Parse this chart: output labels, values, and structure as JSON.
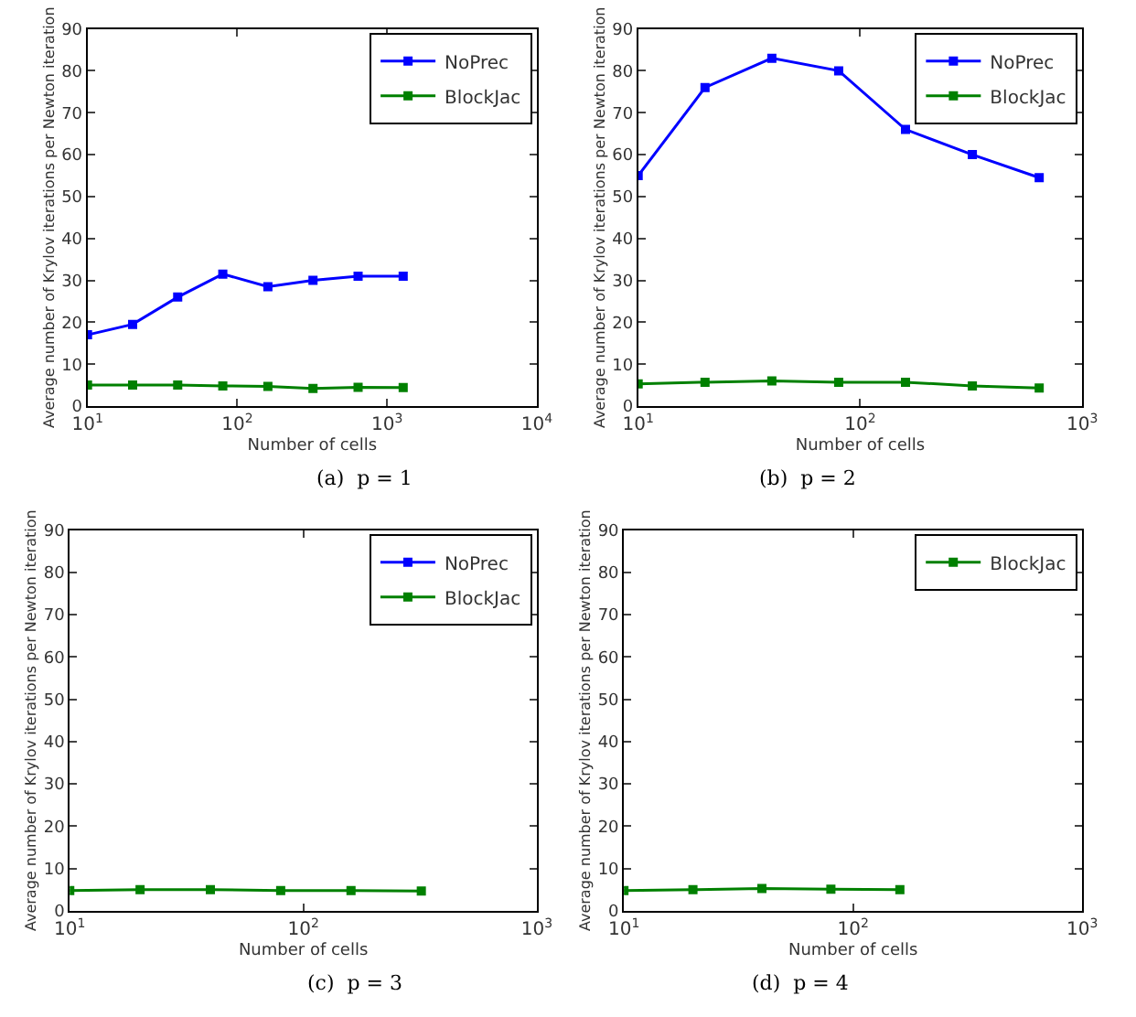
{
  "chart_data": [
    {
      "type": "line",
      "title": "(a)  p = 1",
      "xlabel": "Number of cells",
      "ylabel": "Average number of Krylov iterations per Newton iteration",
      "log": "x",
      "xlim": [
        10,
        10000
      ],
      "xticks": [
        {
          "value": 10,
          "label": "10$^{1}$"
        },
        {
          "value": 100,
          "label": "10$^{2}$"
        },
        {
          "value": 1000,
          "label": "10$^{3}$"
        },
        {
          "value": 10000,
          "label": "10$^{4}$"
        }
      ],
      "ylim": [
        0,
        90
      ],
      "yticks": [
        0,
        10,
        20,
        30,
        40,
        50,
        60,
        70,
        80,
        90
      ],
      "legend": "top right",
      "marker": "square",
      "x": [
        10,
        20,
        40,
        80,
        160,
        320,
        640,
        1280
      ],
      "series": [
        {
          "name": "NoPrec",
          "color": "#0000ff",
          "values": [
            17,
            19.5,
            26,
            31.5,
            28.5,
            30,
            31,
            31
          ]
        },
        {
          "name": "BlockJac",
          "color": "#008000",
          "values": [
            5,
            5,
            5,
            4.8,
            4.7,
            4.2,
            4.5,
            4.4
          ]
        }
      ]
    },
    {
      "type": "line",
      "title": "(b)  p = 2",
      "xlabel": "Number of cells",
      "ylabel": "Average number of Krylov iterations per Newton iteration",
      "log": "x",
      "xlim": [
        10,
        1000
      ],
      "xticks": [
        {
          "value": 10,
          "label": "10$^{1}$"
        },
        {
          "value": 100,
          "label": "10$^{2}$"
        },
        {
          "value": 1000,
          "label": "10$^{3}$"
        }
      ],
      "ylim": [
        0,
        90
      ],
      "yticks": [
        0,
        10,
        20,
        30,
        40,
        50,
        60,
        70,
        80,
        90
      ],
      "legend": "top right",
      "marker": "square",
      "x": [
        10,
        20,
        40,
        80,
        160,
        320,
        640
      ],
      "series": [
        {
          "name": "NoPrec",
          "color": "#0000ff",
          "values": [
            55,
            76,
            83,
            80,
            66,
            60,
            54.5
          ]
        },
        {
          "name": "BlockJac",
          "color": "#008000",
          "values": [
            5.3,
            5.7,
            6,
            5.7,
            5.7,
            4.8,
            4.3
          ]
        }
      ]
    },
    {
      "type": "line",
      "title": "(c)  p = 3",
      "xlabel": "Number of cells",
      "ylabel": "Average number of Krylov iterations per Newton iteration",
      "log": "x",
      "xlim": [
        10,
        1000
      ],
      "xticks": [
        {
          "value": 10,
          "label": "10$^{1}$"
        },
        {
          "value": 100,
          "label": "10$^{2}$"
        },
        {
          "value": 1000,
          "label": "10$^{3}$"
        }
      ],
      "ylim": [
        0,
        90
      ],
      "yticks": [
        0,
        10,
        20,
        30,
        40,
        50,
        60,
        70,
        80,
        90
      ],
      "legend": "top right",
      "marker": "square",
      "x": [
        10,
        20,
        40,
        80,
        160,
        320
      ],
      "series": [
        {
          "name": "NoPrec",
          "color": "#0000ff",
          "values": [
            null,
            null,
            null,
            null,
            null,
            null
          ]
        },
        {
          "name": "BlockJac",
          "color": "#008000",
          "values": [
            4.8,
            5,
            5,
            4.8,
            4.8,
            4.7
          ]
        }
      ]
    },
    {
      "type": "line",
      "title": "(d)  p = 4",
      "xlabel": "Number of cells",
      "ylabel": "Average number of Krylov iterations per Newton iteration",
      "log": "x",
      "xlim": [
        10,
        1000
      ],
      "xticks": [
        {
          "value": 10,
          "label": "10$^{1}$"
        },
        {
          "value": 100,
          "label": "10$^{2}$"
        },
        {
          "value": 1000,
          "label": "10$^{3}$"
        }
      ],
      "ylim": [
        0,
        90
      ],
      "yticks": [
        0,
        10,
        20,
        30,
        40,
        50,
        60,
        70,
        80,
        90
      ],
      "legend": "top right",
      "marker": "square",
      "x": [
        10,
        20,
        40,
        80,
        160
      ],
      "series": [
        {
          "name": "BlockJac",
          "color": "#008000",
          "values": [
            4.8,
            5,
            5.3,
            5.1,
            5
          ]
        }
      ]
    }
  ]
}
